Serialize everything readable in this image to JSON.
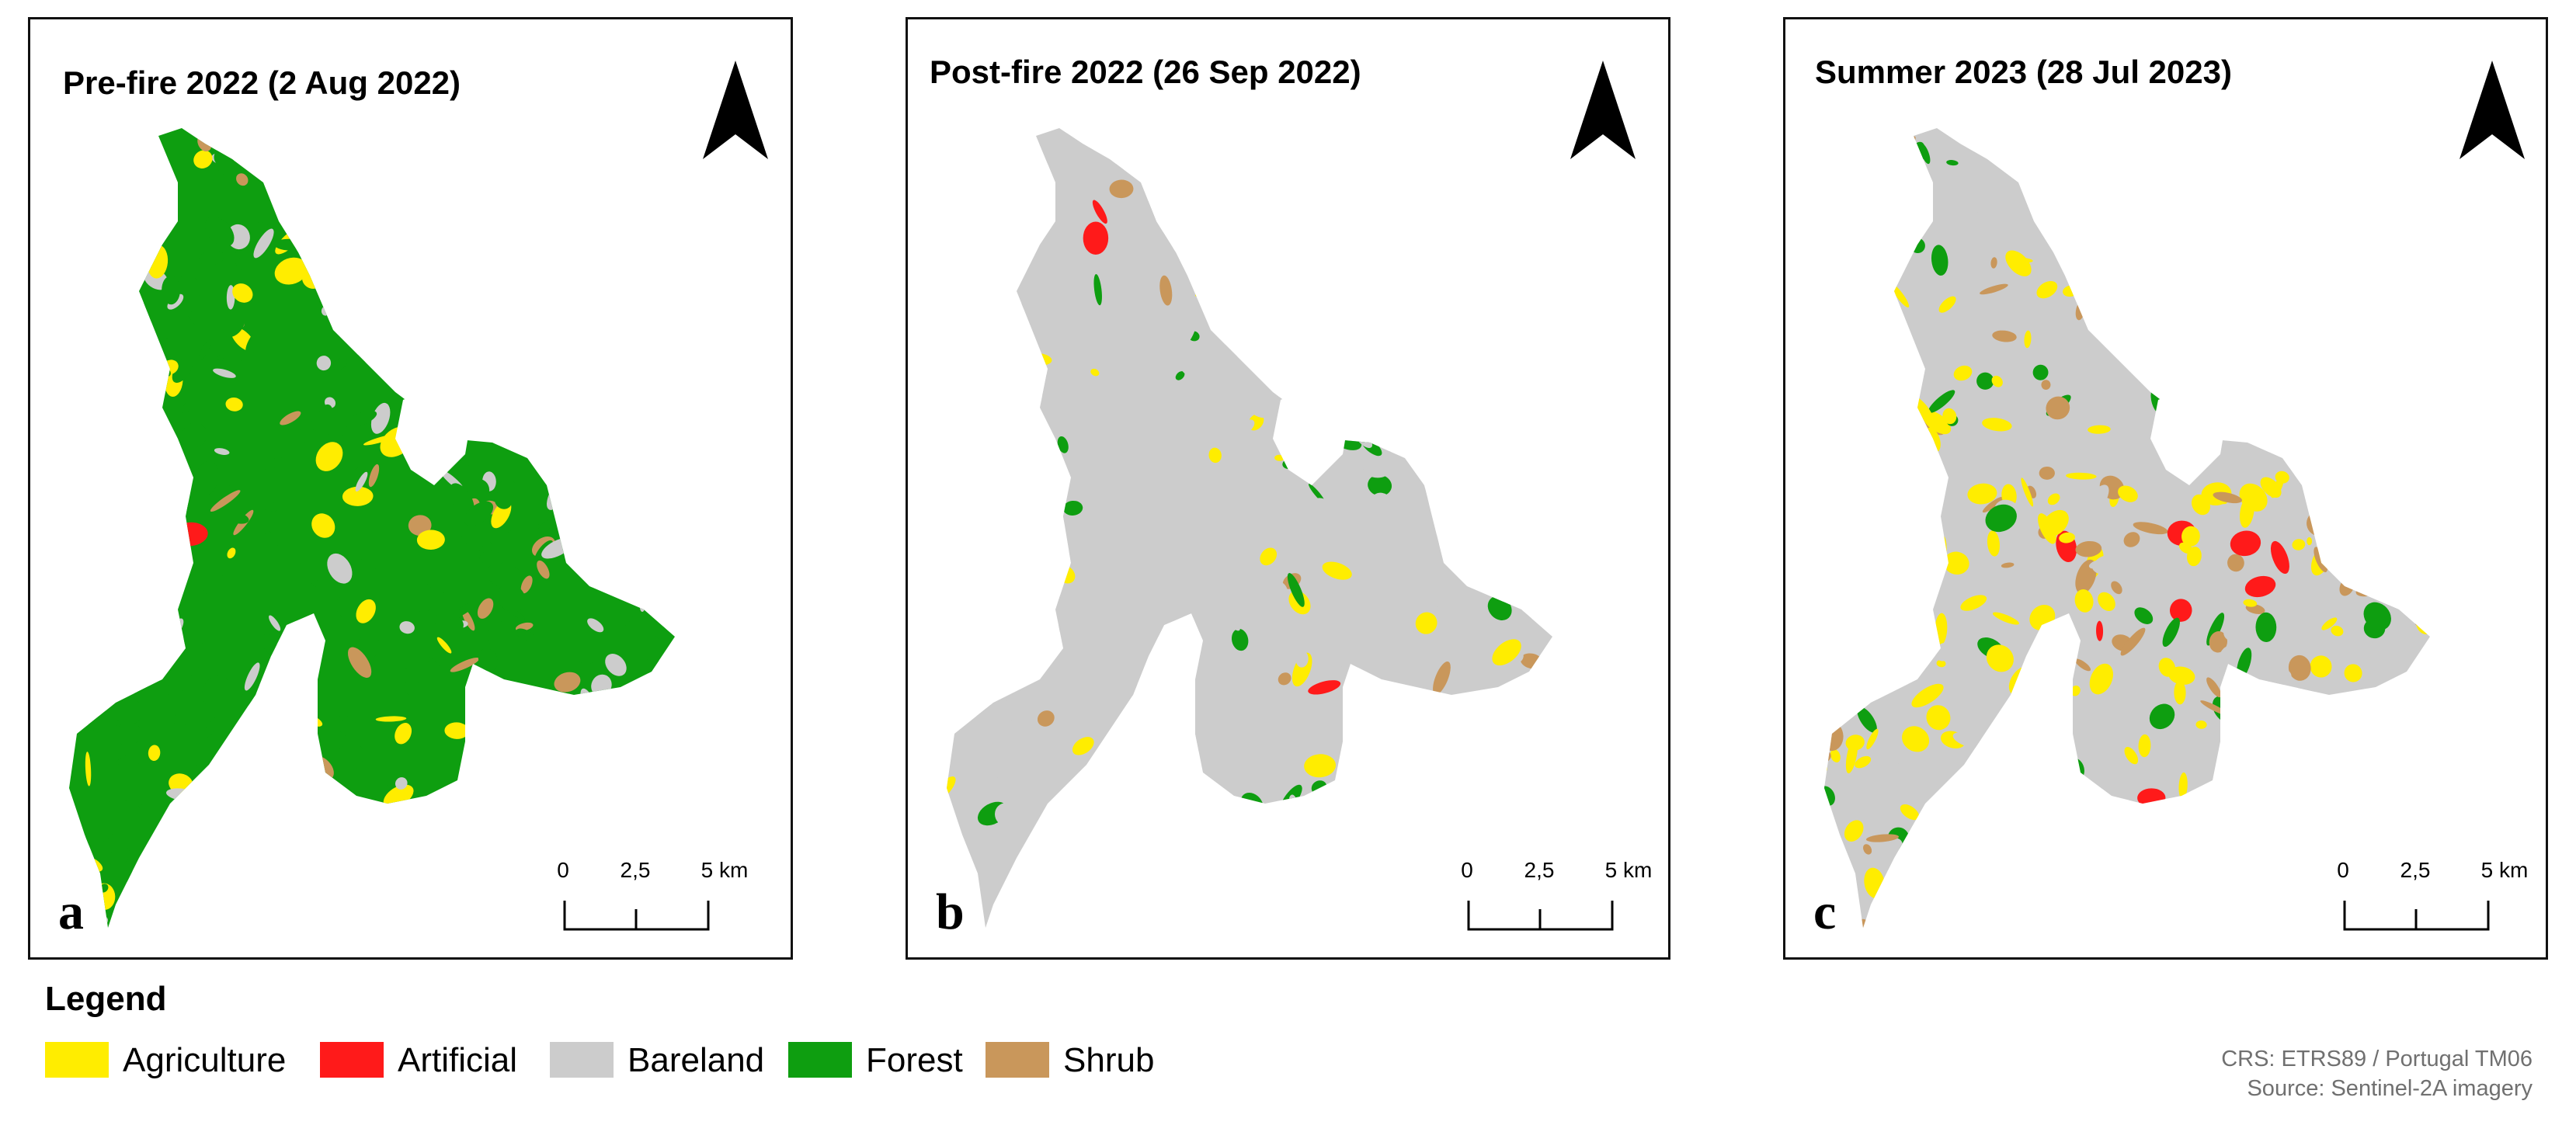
{
  "panels": [
    {
      "title": "Pre-fire 2022 (2 Aug 2022)",
      "letter": "a"
    },
    {
      "title": "Post-fire 2022 (26 Sep 2022)",
      "letter": "b"
    },
    {
      "title": "Summer 2023 (28 Jul 2023)",
      "letter": "c"
    }
  ],
  "scale": {
    "tick0": "0",
    "tick1": "2,5",
    "tick2": "5 km"
  },
  "legend": {
    "title": "Legend",
    "items": [
      {
        "label": "Agriculture",
        "color": "#ffed00"
      },
      {
        "label": "Artificial",
        "color": "#ff1a1a"
      },
      {
        "label": "Bareland",
        "color": "#cccccc"
      },
      {
        "label": "Forest",
        "color": "#0e9e10"
      },
      {
        "label": "Shrub",
        "color": "#c9975b"
      }
    ]
  },
  "footer": {
    "crs": "CRS: ETRS89 / Portugal TM06",
    "source": "Source: Sentinel-2A imagery"
  }
}
